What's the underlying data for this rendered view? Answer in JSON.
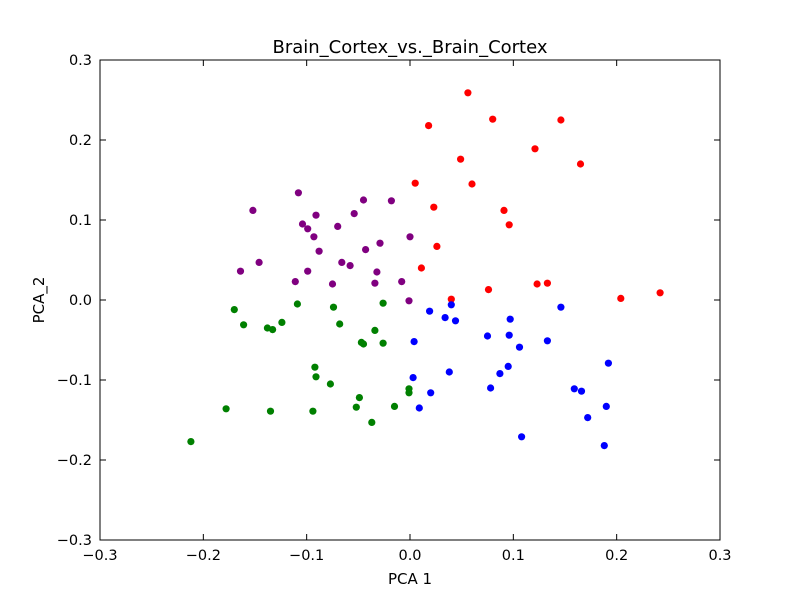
{
  "chart_data": {
    "type": "scatter",
    "title": "Brain_Cortex_vs._Brain_Cortex",
    "xlabel": "PCA 1",
    "ylabel": "PCA_2",
    "xlim": [
      -0.3,
      0.3
    ],
    "ylim": [
      -0.3,
      0.3
    ],
    "x_ticks": [
      -0.3,
      -0.2,
      -0.1,
      0.0,
      0.1,
      0.2,
      0.3
    ],
    "x_tick_labels": [
      "−0.3",
      "−0.2",
      "−0.1",
      "0.0",
      "0.1",
      "0.2",
      "0.3"
    ],
    "y_ticks": [
      -0.3,
      -0.2,
      -0.1,
      0.0,
      0.1,
      0.2,
      0.3
    ],
    "y_tick_labels": [
      "−0.3",
      "−0.2",
      "−0.1",
      "0.0",
      "0.1",
      "0.2",
      "0.3"
    ],
    "grid": false,
    "legend": "none",
    "series": [
      {
        "color": "#ff0000",
        "points": [
          [
            0.056,
            0.259
          ],
          [
            0.08,
            0.226
          ],
          [
            0.146,
            0.225
          ],
          [
            0.018,
            0.218
          ],
          [
            0.121,
            0.189
          ],
          [
            0.049,
            0.176
          ],
          [
            0.165,
            0.17
          ],
          [
            0.005,
            0.146
          ],
          [
            0.06,
            0.145
          ],
          [
            0.023,
            0.116
          ],
          [
            0.091,
            0.112
          ],
          [
            0.096,
            0.094
          ],
          [
            0.026,
            0.067
          ],
          [
            0.011,
            0.04
          ],
          [
            0.123,
            0.02
          ],
          [
            0.133,
            0.021
          ],
          [
            0.076,
            0.013
          ],
          [
            0.204,
            0.002
          ],
          [
            0.242,
            0.009
          ],
          [
            0.04,
            0.001
          ]
        ]
      },
      {
        "color": "#800080",
        "points": [
          [
            -0.108,
            0.134
          ],
          [
            -0.152,
            0.112
          ],
          [
            -0.045,
            0.125
          ],
          [
            -0.018,
            0.124
          ],
          [
            -0.054,
            0.108
          ],
          [
            -0.091,
            0.106
          ],
          [
            -0.104,
            0.095
          ],
          [
            -0.099,
            0.089
          ],
          [
            -0.07,
            0.092
          ],
          [
            -0.093,
            0.079
          ],
          [
            -0.029,
            0.071
          ],
          [
            0.0,
            0.079
          ],
          [
            -0.088,
            0.061
          ],
          [
            -0.043,
            0.063
          ],
          [
            -0.146,
            0.047
          ],
          [
            -0.066,
            0.047
          ],
          [
            -0.058,
            0.043
          ],
          [
            -0.164,
            0.036
          ],
          [
            -0.099,
            0.036
          ],
          [
            -0.032,
            0.035
          ],
          [
            -0.111,
            0.023
          ],
          [
            -0.008,
            0.023
          ],
          [
            -0.075,
            0.02
          ],
          [
            -0.034,
            0.021
          ],
          [
            -0.001,
            -0.001
          ]
        ]
      },
      {
        "color": "#0000ff",
        "points": [
          [
            0.04,
            -0.006
          ],
          [
            0.146,
            -0.009
          ],
          [
            0.019,
            -0.014
          ],
          [
            0.034,
            -0.022
          ],
          [
            0.044,
            -0.026
          ],
          [
            0.097,
            -0.024
          ],
          [
            0.075,
            -0.045
          ],
          [
            0.096,
            -0.044
          ],
          [
            0.004,
            -0.052
          ],
          [
            0.133,
            -0.051
          ],
          [
            0.106,
            -0.059
          ],
          [
            0.192,
            -0.079
          ],
          [
            0.095,
            -0.083
          ],
          [
            0.087,
            -0.092
          ],
          [
            0.038,
            -0.09
          ],
          [
            0.003,
            -0.097
          ],
          [
            0.159,
            -0.111
          ],
          [
            0.166,
            -0.114
          ],
          [
            0.078,
            -0.11
          ],
          [
            0.02,
            -0.116
          ],
          [
            0.19,
            -0.133
          ],
          [
            0.009,
            -0.135
          ],
          [
            0.172,
            -0.147
          ],
          [
            0.108,
            -0.171
          ],
          [
            0.188,
            -0.182
          ]
        ]
      },
      {
        "color": "#008000",
        "points": [
          [
            -0.109,
            -0.005
          ],
          [
            -0.026,
            -0.004
          ],
          [
            -0.17,
            -0.012
          ],
          [
            -0.074,
            -0.009
          ],
          [
            -0.124,
            -0.028
          ],
          [
            -0.161,
            -0.031
          ],
          [
            -0.068,
            -0.03
          ],
          [
            -0.138,
            -0.035
          ],
          [
            -0.133,
            -0.037
          ],
          [
            -0.034,
            -0.038
          ],
          [
            -0.047,
            -0.053
          ],
          [
            -0.045,
            -0.055
          ],
          [
            -0.026,
            -0.054
          ],
          [
            -0.092,
            -0.084
          ],
          [
            -0.091,
            -0.096
          ],
          [
            -0.077,
            -0.105
          ],
          [
            -0.001,
            -0.111
          ],
          [
            -0.001,
            -0.116
          ],
          [
            -0.049,
            -0.122
          ],
          [
            -0.015,
            -0.133
          ],
          [
            -0.052,
            -0.134
          ],
          [
            -0.178,
            -0.136
          ],
          [
            -0.135,
            -0.139
          ],
          [
            -0.094,
            -0.139
          ],
          [
            -0.037,
            -0.153
          ],
          [
            -0.212,
            -0.177
          ]
        ]
      }
    ]
  }
}
